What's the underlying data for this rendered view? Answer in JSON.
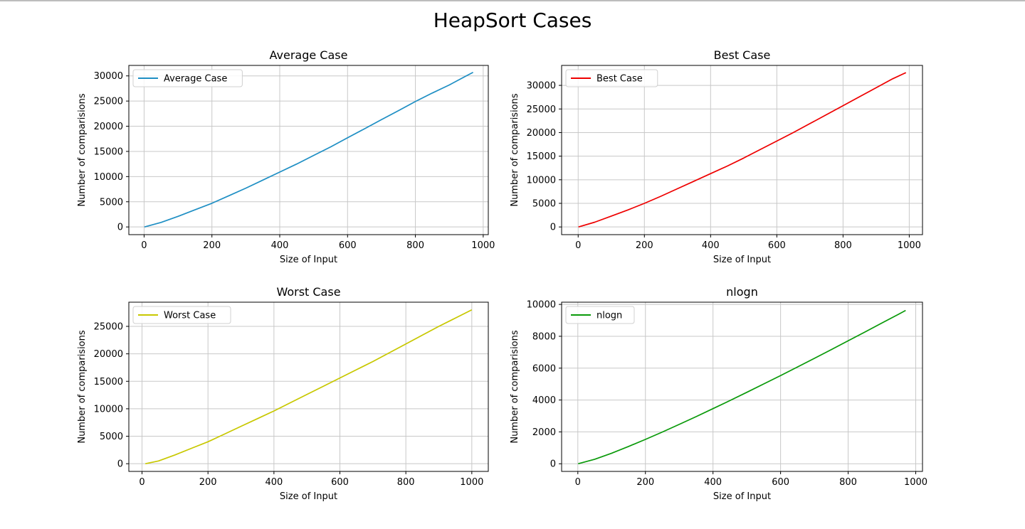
{
  "figure": {
    "title": "HeapSort Cases"
  },
  "chart_data": [
    {
      "type": "line",
      "title": "Average Case",
      "xlabel": "Size of Input",
      "ylabel": "Number of comparisions",
      "xlim": [
        -45,
        1015
      ],
      "ylim": [
        -1530,
        32080
      ],
      "xticks": [
        0,
        200,
        400,
        600,
        800,
        1000
      ],
      "yticks": [
        0,
        5000,
        10000,
        15000,
        20000,
        25000,
        30000
      ],
      "grid": true,
      "legend_position": "top-left",
      "series": [
        {
          "name": "Average Case",
          "color": "#1f8fc4",
          "x": [
            1,
            50,
            100,
            150,
            200,
            250,
            300,
            350,
            400,
            450,
            500,
            550,
            600,
            650,
            700,
            750,
            800,
            850,
            900,
            950,
            970
          ],
          "y": [
            0,
            900,
            2100,
            3400,
            4700,
            6200,
            7700,
            9300,
            10900,
            12500,
            14200,
            15900,
            17700,
            19500,
            21300,
            23100,
            24900,
            26600,
            28200,
            30000,
            30700
          ]
        }
      ]
    },
    {
      "type": "line",
      "title": "Best Case",
      "xlabel": "Size of Input",
      "ylabel": "Number of comparisions",
      "xlim": [
        -50,
        1040
      ],
      "ylim": [
        -1630,
        34230
      ],
      "xticks": [
        0,
        200,
        400,
        600,
        800,
        1000
      ],
      "yticks": [
        0,
        5000,
        10000,
        15000,
        20000,
        25000,
        30000
      ],
      "grid": true,
      "legend_position": "top-left",
      "series": [
        {
          "name": "Best Case",
          "color": "#ee0000",
          "x": [
            1,
            50,
            100,
            150,
            200,
            250,
            300,
            350,
            400,
            450,
            500,
            550,
            600,
            650,
            700,
            750,
            800,
            850,
            900,
            950,
            990
          ],
          "y": [
            0,
            1000,
            2300,
            3600,
            5000,
            6500,
            8100,
            9700,
            11300,
            12900,
            14600,
            16400,
            18200,
            20000,
            21900,
            23800,
            25700,
            27600,
            29500,
            31400,
            32700
          ]
        }
      ]
    },
    {
      "type": "line",
      "title": "Worst Case",
      "xlabel": "Size of Input",
      "ylabel": "Number of comparisions",
      "xlim": [
        -40,
        1050
      ],
      "ylim": [
        -1400,
        29400
      ],
      "xticks": [
        0,
        200,
        400,
        600,
        800,
        1000
      ],
      "yticks": [
        0,
        5000,
        10000,
        15000,
        20000,
        25000
      ],
      "grid": true,
      "legend_position": "top-left",
      "series": [
        {
          "name": "Worst Case",
          "color": "#c8c800",
          "x": [
            10,
            50,
            100,
            150,
            200,
            250,
            300,
            350,
            400,
            450,
            500,
            550,
            600,
            650,
            700,
            750,
            800,
            850,
            900,
            950,
            1000
          ],
          "y": [
            0,
            500,
            1600,
            2800,
            4000,
            5400,
            6800,
            8200,
            9600,
            11100,
            12600,
            14100,
            15600,
            17100,
            18600,
            20200,
            21800,
            23400,
            25000,
            26500,
            28000
          ]
        }
      ]
    },
    {
      "type": "line",
      "title": "nlogn",
      "xlabel": "Size of Input",
      "ylabel": "Number of comparisions",
      "xlim": [
        -48,
        1020
      ],
      "ylim": [
        -480,
        10140
      ],
      "xticks": [
        0,
        200,
        400,
        600,
        800,
        1000
      ],
      "yticks": [
        0,
        2000,
        4000,
        6000,
        8000,
        10000
      ],
      "grid": true,
      "legend_position": "top-left",
      "series": [
        {
          "name": "nlogn",
          "color": "#0a9a0a",
          "x": [
            1,
            50,
            100,
            150,
            200,
            250,
            300,
            350,
            400,
            450,
            500,
            550,
            600,
            650,
            700,
            750,
            800,
            850,
            900,
            950,
            970
          ],
          "y": [
            0,
            282,
            664,
            1084,
            1529,
            1991,
            2469,
            2958,
            3458,
            3966,
            4483,
            5007,
            5537,
            6074,
            6617,
            7164,
            7715,
            8271,
            8832,
            9397,
            9624
          ]
        }
      ]
    }
  ]
}
